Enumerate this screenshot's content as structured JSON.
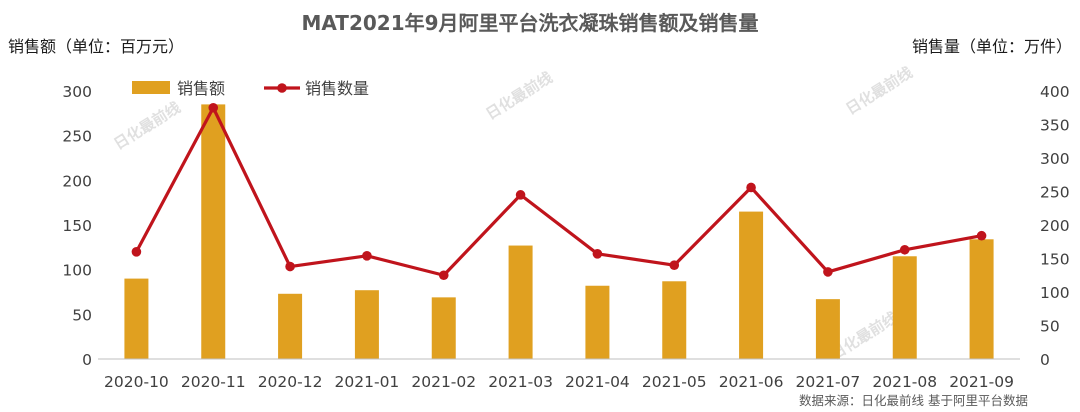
{
  "chart_data": {
    "type": "bar",
    "title": "MAT2021年9月阿里平台洗衣凝珠销售额及销售量",
    "ylabel": "销售额（单位：百万元）",
    "y2label": "销售量（单位：万件）",
    "categories": [
      "2020-10",
      "2020-11",
      "2020-12",
      "2021-01",
      "2021-02",
      "2021-03",
      "2021-04",
      "2021-05",
      "2021-06",
      "2021-07",
      "2021-08",
      "2021-09"
    ],
    "series": [
      {
        "name": "销售额",
        "type": "bar",
        "axis": "left",
        "color": "#E0A020",
        "values": [
          90,
          285,
          73,
          77,
          69,
          127,
          82,
          87,
          165,
          67,
          115,
          134
        ]
      },
      {
        "name": "销售数量",
        "type": "line",
        "axis": "right",
        "color": "#C0141C",
        "values": [
          160,
          375,
          138,
          154,
          125,
          245,
          157,
          140,
          256,
          130,
          163,
          184
        ]
      }
    ],
    "ylim": [
      0,
      300
    ],
    "yticks": [
      0,
      50,
      100,
      150,
      200,
      250,
      300
    ],
    "y2lim": [
      0,
      400
    ],
    "y2ticks": [
      0,
      50,
      100,
      150,
      200,
      250,
      300,
      350,
      400
    ],
    "legend": "top-left",
    "grid": false,
    "source": "数据来源：日化最前线 基于阿里平台数据",
    "watermark": "日化最前线"
  }
}
